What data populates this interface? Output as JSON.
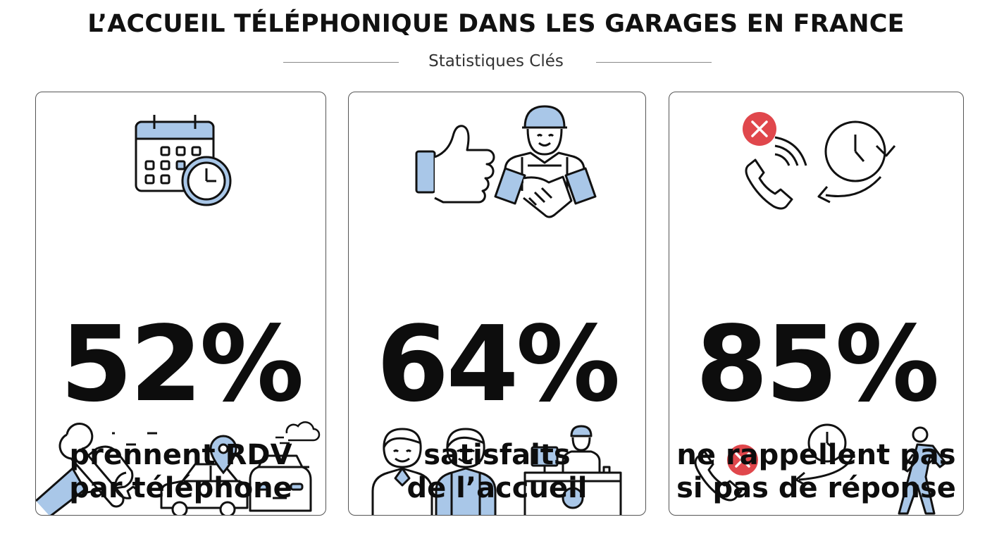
{
  "header": {
    "title": "L’ACCUEIL TÉLÉPHONIQUE DANS LES GARAGES EN FRANCE",
    "subtitle": "Statistiques Clés"
  },
  "cards": [
    {
      "value": "52%",
      "line1": "prennent RDV",
      "line2": "par téléphone",
      "icons": [
        "calendar-icon",
        "clock-icon",
        "wrench-hand-icon",
        "car-icon",
        "location-pin-icon",
        "cloud-icon"
      ]
    },
    {
      "value": "64%",
      "line1": "satisfaits",
      "line2": "de l’accueil",
      "icons": [
        "thumbs-up-icon",
        "mechanic-icon",
        "handshake-icon",
        "people-icon",
        "reception-desk-icon"
      ]
    },
    {
      "value": "85%",
      "line1": "ne rappellent pas",
      "line2": "si pas de réponse",
      "icons": [
        "missed-call-icon",
        "phone-icon",
        "clock-arrow-icon",
        "walking-person-icon"
      ]
    }
  ],
  "colors": {
    "accent": "#a9c7e8",
    "alert": "#e0474c",
    "ink": "#111111"
  }
}
